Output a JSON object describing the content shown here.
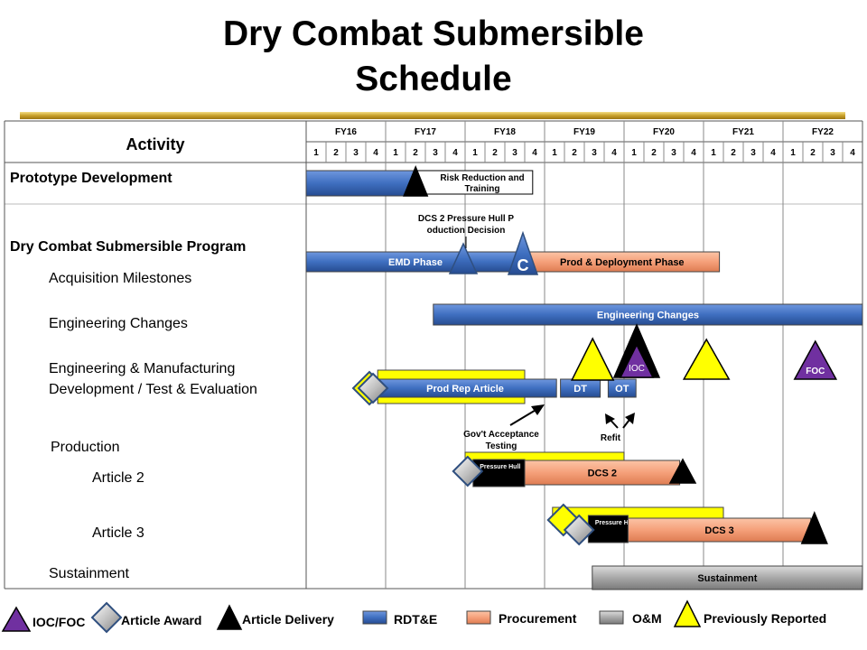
{
  "title": {
    "line1": "Dry Combat Submersible",
    "line2": "Schedule"
  },
  "colors": {
    "rdte": "#3f6fc0",
    "procurement": "#f5a07a",
    "om": "#a8a8a8",
    "previous": "#ffff00",
    "ioc_foc": "#7030a0",
    "accent_rule": "#c8a02a"
  },
  "chart_data": {
    "type": "gantt",
    "header": {
      "activity_label": "Activity",
      "fiscal_years": [
        "FY16",
        "FY17",
        "FY18",
        "FY19",
        "FY20",
        "FY21",
        "FY22"
      ],
      "quarters": [
        "1",
        "2",
        "3",
        "4"
      ]
    },
    "rows": [
      "Prototype Development",
      "Dry Combat Submersible Program",
      "Acquisition Milestones",
      "Engineering Changes",
      "Engineering & Manufacturing",
      "Development / Test & Evaluation",
      "Production",
      "Article 2",
      "Article 3",
      "Sustainment"
    ],
    "bars": [
      {
        "id": "proto-bar",
        "category": "rdte",
        "row": 0,
        "start": 0.0,
        "end": 1.4,
        "label": ""
      },
      {
        "id": "risk-bar",
        "category": "plain",
        "row": 0,
        "start": 1.4,
        "end": 2.85,
        "label": "Risk Reduction and Training"
      },
      {
        "id": "emd-bar",
        "category": "rdte",
        "row": 1,
        "start": 0.0,
        "end": 2.75,
        "label": "EMD Phase"
      },
      {
        "id": "prod-deploy-bar",
        "category": "procurement",
        "row": 1,
        "start": 2.75,
        "end": 5.2,
        "label": "Prod & Deployment Phase"
      },
      {
        "id": "eng-changes-bar",
        "category": "rdte",
        "row": 3,
        "start": 1.6,
        "end": 7.0,
        "label": "Engineering Changes"
      },
      {
        "id": "prod-rep-prev-bar",
        "category": "previous",
        "row": 4,
        "start": 0.9,
        "end": 2.75,
        "label": ""
      },
      {
        "id": "prod-rep-bar",
        "category": "rdte",
        "row": 4,
        "start": 0.85,
        "end": 3.15,
        "label": "Prod Rep Article"
      },
      {
        "id": "dt-bar",
        "category": "rdte",
        "row": 4,
        "start": 3.2,
        "end": 3.7,
        "label": "DT"
      },
      {
        "id": "ot-bar",
        "category": "rdte",
        "row": 4,
        "start": 3.8,
        "end": 4.15,
        "label": "OT"
      },
      {
        "id": "dcs2-prev-bar",
        "category": "previous",
        "row": 7,
        "start": 2.0,
        "end": 4.0,
        "label": ""
      },
      {
        "id": "ph2-bar",
        "category": "black",
        "row": 7,
        "start": 2.1,
        "end": 2.75,
        "label": "Pressure Hull"
      },
      {
        "id": "dcs2-bar",
        "category": "procurement",
        "row": 7,
        "start": 2.75,
        "end": 4.7,
        "label": "DCS 2"
      },
      {
        "id": "dcs3-prev-bar",
        "category": "previous",
        "row": 8,
        "start": 3.1,
        "end": 5.25,
        "label": ""
      },
      {
        "id": "ph3-bar",
        "category": "black",
        "row": 8,
        "start": 3.55,
        "end": 4.05,
        "label": "Pressure Hull"
      },
      {
        "id": "dcs3-bar",
        "category": "procurement",
        "row": 8,
        "start": 4.05,
        "end": 6.35,
        "label": "DCS 3"
      },
      {
        "id": "sustain-bar",
        "category": "om",
        "row": 9,
        "start": 3.6,
        "end": 7.0,
        "label": "Sustainment"
      }
    ],
    "milestones": [
      {
        "id": "risk-delivery",
        "type": "delivery",
        "at": 1.4,
        "label": ""
      },
      {
        "id": "ms-b",
        "type": "milestone-blue",
        "at": 2.0,
        "label": ""
      },
      {
        "id": "ms-c",
        "type": "milestone-blue",
        "at": 2.75,
        "label": "C"
      },
      {
        "id": "prev-1",
        "type": "previous",
        "at": 3.65,
        "label": ""
      },
      {
        "id": "ioc",
        "type": "ioc_foc",
        "at": 4.25,
        "label": "IOC"
      },
      {
        "id": "prev-2",
        "type": "previous",
        "at": 5.15,
        "label": ""
      },
      {
        "id": "foc",
        "type": "ioc_foc",
        "at": 6.35,
        "label": "FOC"
      },
      {
        "id": "prod-rep-award",
        "type": "award",
        "at": 0.75,
        "label": ""
      },
      {
        "id": "art2-award",
        "type": "award",
        "at": 2.1,
        "label": ""
      },
      {
        "id": "art2-delivery",
        "type": "delivery",
        "at": 4.75,
        "label": ""
      },
      {
        "id": "art3-prev-award",
        "type": "award-previous",
        "at": 3.1,
        "label": ""
      },
      {
        "id": "art3-award",
        "type": "award",
        "at": 3.4,
        "label": ""
      },
      {
        "id": "art3-delivery",
        "type": "delivery",
        "at": 6.35,
        "label": ""
      }
    ],
    "annotations": {
      "production_decision": "DCS 2 Pressure Hull Production Decision",
      "gov_testing": "Gov't Acceptance Testing",
      "refit": "Refit"
    },
    "legend": [
      {
        "key": "ioc_foc",
        "label": "IOC/FOC"
      },
      {
        "key": "award",
        "label": "Article Award"
      },
      {
        "key": "delivery",
        "label": "Article Delivery"
      },
      {
        "key": "rdte",
        "label": "RDT&E"
      },
      {
        "key": "procurement",
        "label": "Procurement"
      },
      {
        "key": "om",
        "label": "O&M"
      },
      {
        "key": "previous",
        "label": "Previously Reported"
      }
    ]
  }
}
